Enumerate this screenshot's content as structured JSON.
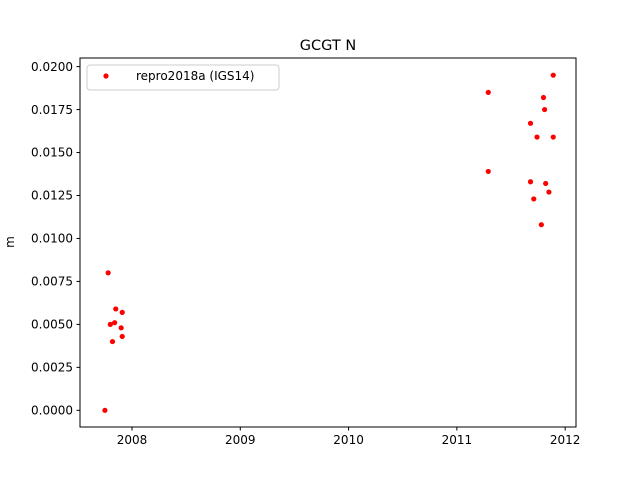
{
  "chart_data": {
    "type": "scatter",
    "title": "GCGT N",
    "xlabel": "",
    "ylabel": "m",
    "xlim": [
      2007.52,
      2012.1
    ],
    "ylim": [
      -0.00097,
      0.0205
    ],
    "xticks": [
      2008,
      2009,
      2010,
      2011,
      2012
    ],
    "xtick_labels": [
      "2008",
      "2009",
      "2010",
      "2011",
      "2012"
    ],
    "yticks": [
      0.0,
      0.0025,
      0.005,
      0.0075,
      0.01,
      0.0125,
      0.015,
      0.0175,
      0.02
    ],
    "ytick_labels": [
      "0.0000",
      "0.0025",
      "0.0050",
      "0.0075",
      "0.0100",
      "0.0125",
      "0.0150",
      "0.0175",
      "0.0200"
    ],
    "grid": false,
    "legend_position": "top-left",
    "series": [
      {
        "name": "repro2018a (IGS14)",
        "color": "#ff0000",
        "marker": "circle",
        "points": [
          {
            "x": 2007.75,
            "y": 0.0
          },
          {
            "x": 2007.78,
            "y": 0.008
          },
          {
            "x": 2007.8,
            "y": 0.005
          },
          {
            "x": 2007.82,
            "y": 0.004
          },
          {
            "x": 2007.84,
            "y": 0.0051
          },
          {
            "x": 2007.85,
            "y": 0.0059
          },
          {
            "x": 2007.9,
            "y": 0.0048
          },
          {
            "x": 2007.91,
            "y": 0.0057
          },
          {
            "x": 2007.91,
            "y": 0.0043
          },
          {
            "x": 2011.29,
            "y": 0.0185
          },
          {
            "x": 2011.29,
            "y": 0.0139
          },
          {
            "x": 2011.68,
            "y": 0.0167
          },
          {
            "x": 2011.68,
            "y": 0.0133
          },
          {
            "x": 2011.71,
            "y": 0.0123
          },
          {
            "x": 2011.74,
            "y": 0.0159
          },
          {
            "x": 2011.78,
            "y": 0.0108
          },
          {
            "x": 2011.8,
            "y": 0.0182
          },
          {
            "x": 2011.81,
            "y": 0.0175
          },
          {
            "x": 2011.82,
            "y": 0.0132
          },
          {
            "x": 2011.85,
            "y": 0.0127
          },
          {
            "x": 2011.89,
            "y": 0.0195
          },
          {
            "x": 2011.89,
            "y": 0.0159
          }
        ]
      }
    ]
  }
}
